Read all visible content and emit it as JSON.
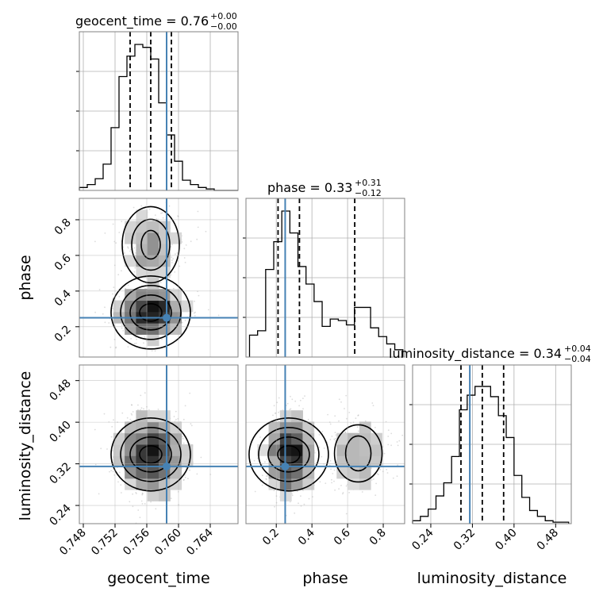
{
  "chart_data": {
    "type": "corner",
    "parameters": [
      "geocent_time",
      "phase",
      "luminosity_distance"
    ],
    "injection": {
      "geocent_time": 0.7585,
      "phase": 0.25,
      "luminosity_distance": 0.315
    },
    "colors": {
      "truth": "#4682b4",
      "hist": "#000000",
      "grid": "#b0b0b0"
    },
    "grid": true,
    "panels": {
      "geocent_time": {
        "title_main": "geocent_time = 0.76",
        "title_plus": "+0.00",
        "title_minus": "−0.00",
        "range": [
          0.7475,
          0.7675
        ],
        "ticks": [
          "0.748",
          "0.752",
          "0.756",
          "0.760",
          "0.764"
        ],
        "tick_values": [
          0.748,
          0.752,
          0.756,
          0.76,
          0.764
        ],
        "quantiles": [
          0.7539,
          0.7565,
          0.7591
        ],
        "hist": [
          0.02,
          0.04,
          0.08,
          0.18,
          0.43,
          0.78,
          0.92,
          1.0,
          0.98,
          0.9,
          0.6,
          0.38,
          0.2,
          0.07,
          0.04,
          0.02,
          0.01,
          0.0,
          0.0,
          0.0
        ],
        "hist_range": [
          0.7475,
          0.7675
        ]
      },
      "phase": {
        "title_main": "phase = 0.33",
        "title_plus": "+0.31",
        "title_minus": "−0.12",
        "range": [
          0.03,
          0.92
        ],
        "ticks": [
          "0.2",
          "0.4",
          "0.6",
          "0.8"
        ],
        "tick_values": [
          0.2,
          0.4,
          0.6,
          0.8
        ],
        "quantiles": [
          0.21,
          0.33,
          0.64
        ],
        "hist": [
          0.15,
          0.18,
          0.6,
          0.79,
          1.0,
          0.85,
          0.62,
          0.5,
          0.38,
          0.21,
          0.26,
          0.25,
          0.22,
          0.34,
          0.34,
          0.2,
          0.14,
          0.09,
          0.05
        ],
        "hist_range": [
          0.05,
          0.91
        ]
      },
      "luminosity_distance": {
        "title_main": "luminosity_distance = 0.34",
        "title_plus": "+0.04",
        "title_minus": "−0.04",
        "range": [
          0.205,
          0.51
        ],
        "ticks": [
          "0.24",
          "0.32",
          "0.40",
          "0.48"
        ],
        "tick_values": [
          0.24,
          0.32,
          0.4,
          0.48
        ],
        "quantiles": [
          0.298,
          0.339,
          0.38
        ],
        "hist": [
          0.02,
          0.05,
          0.1,
          0.19,
          0.28,
          0.46,
          0.78,
          0.88,
          0.94,
          0.94,
          0.87,
          0.74,
          0.59,
          0.33,
          0.18,
          0.09,
          0.05,
          0.02,
          0.01,
          0.01
        ],
        "hist_range": [
          0.205,
          0.505
        ]
      }
    },
    "axis_labels": {
      "x": [
        "geocent_time",
        "phase",
        "luminosity_distance"
      ],
      "y": [
        "phase",
        "luminosity_distance"
      ]
    }
  }
}
